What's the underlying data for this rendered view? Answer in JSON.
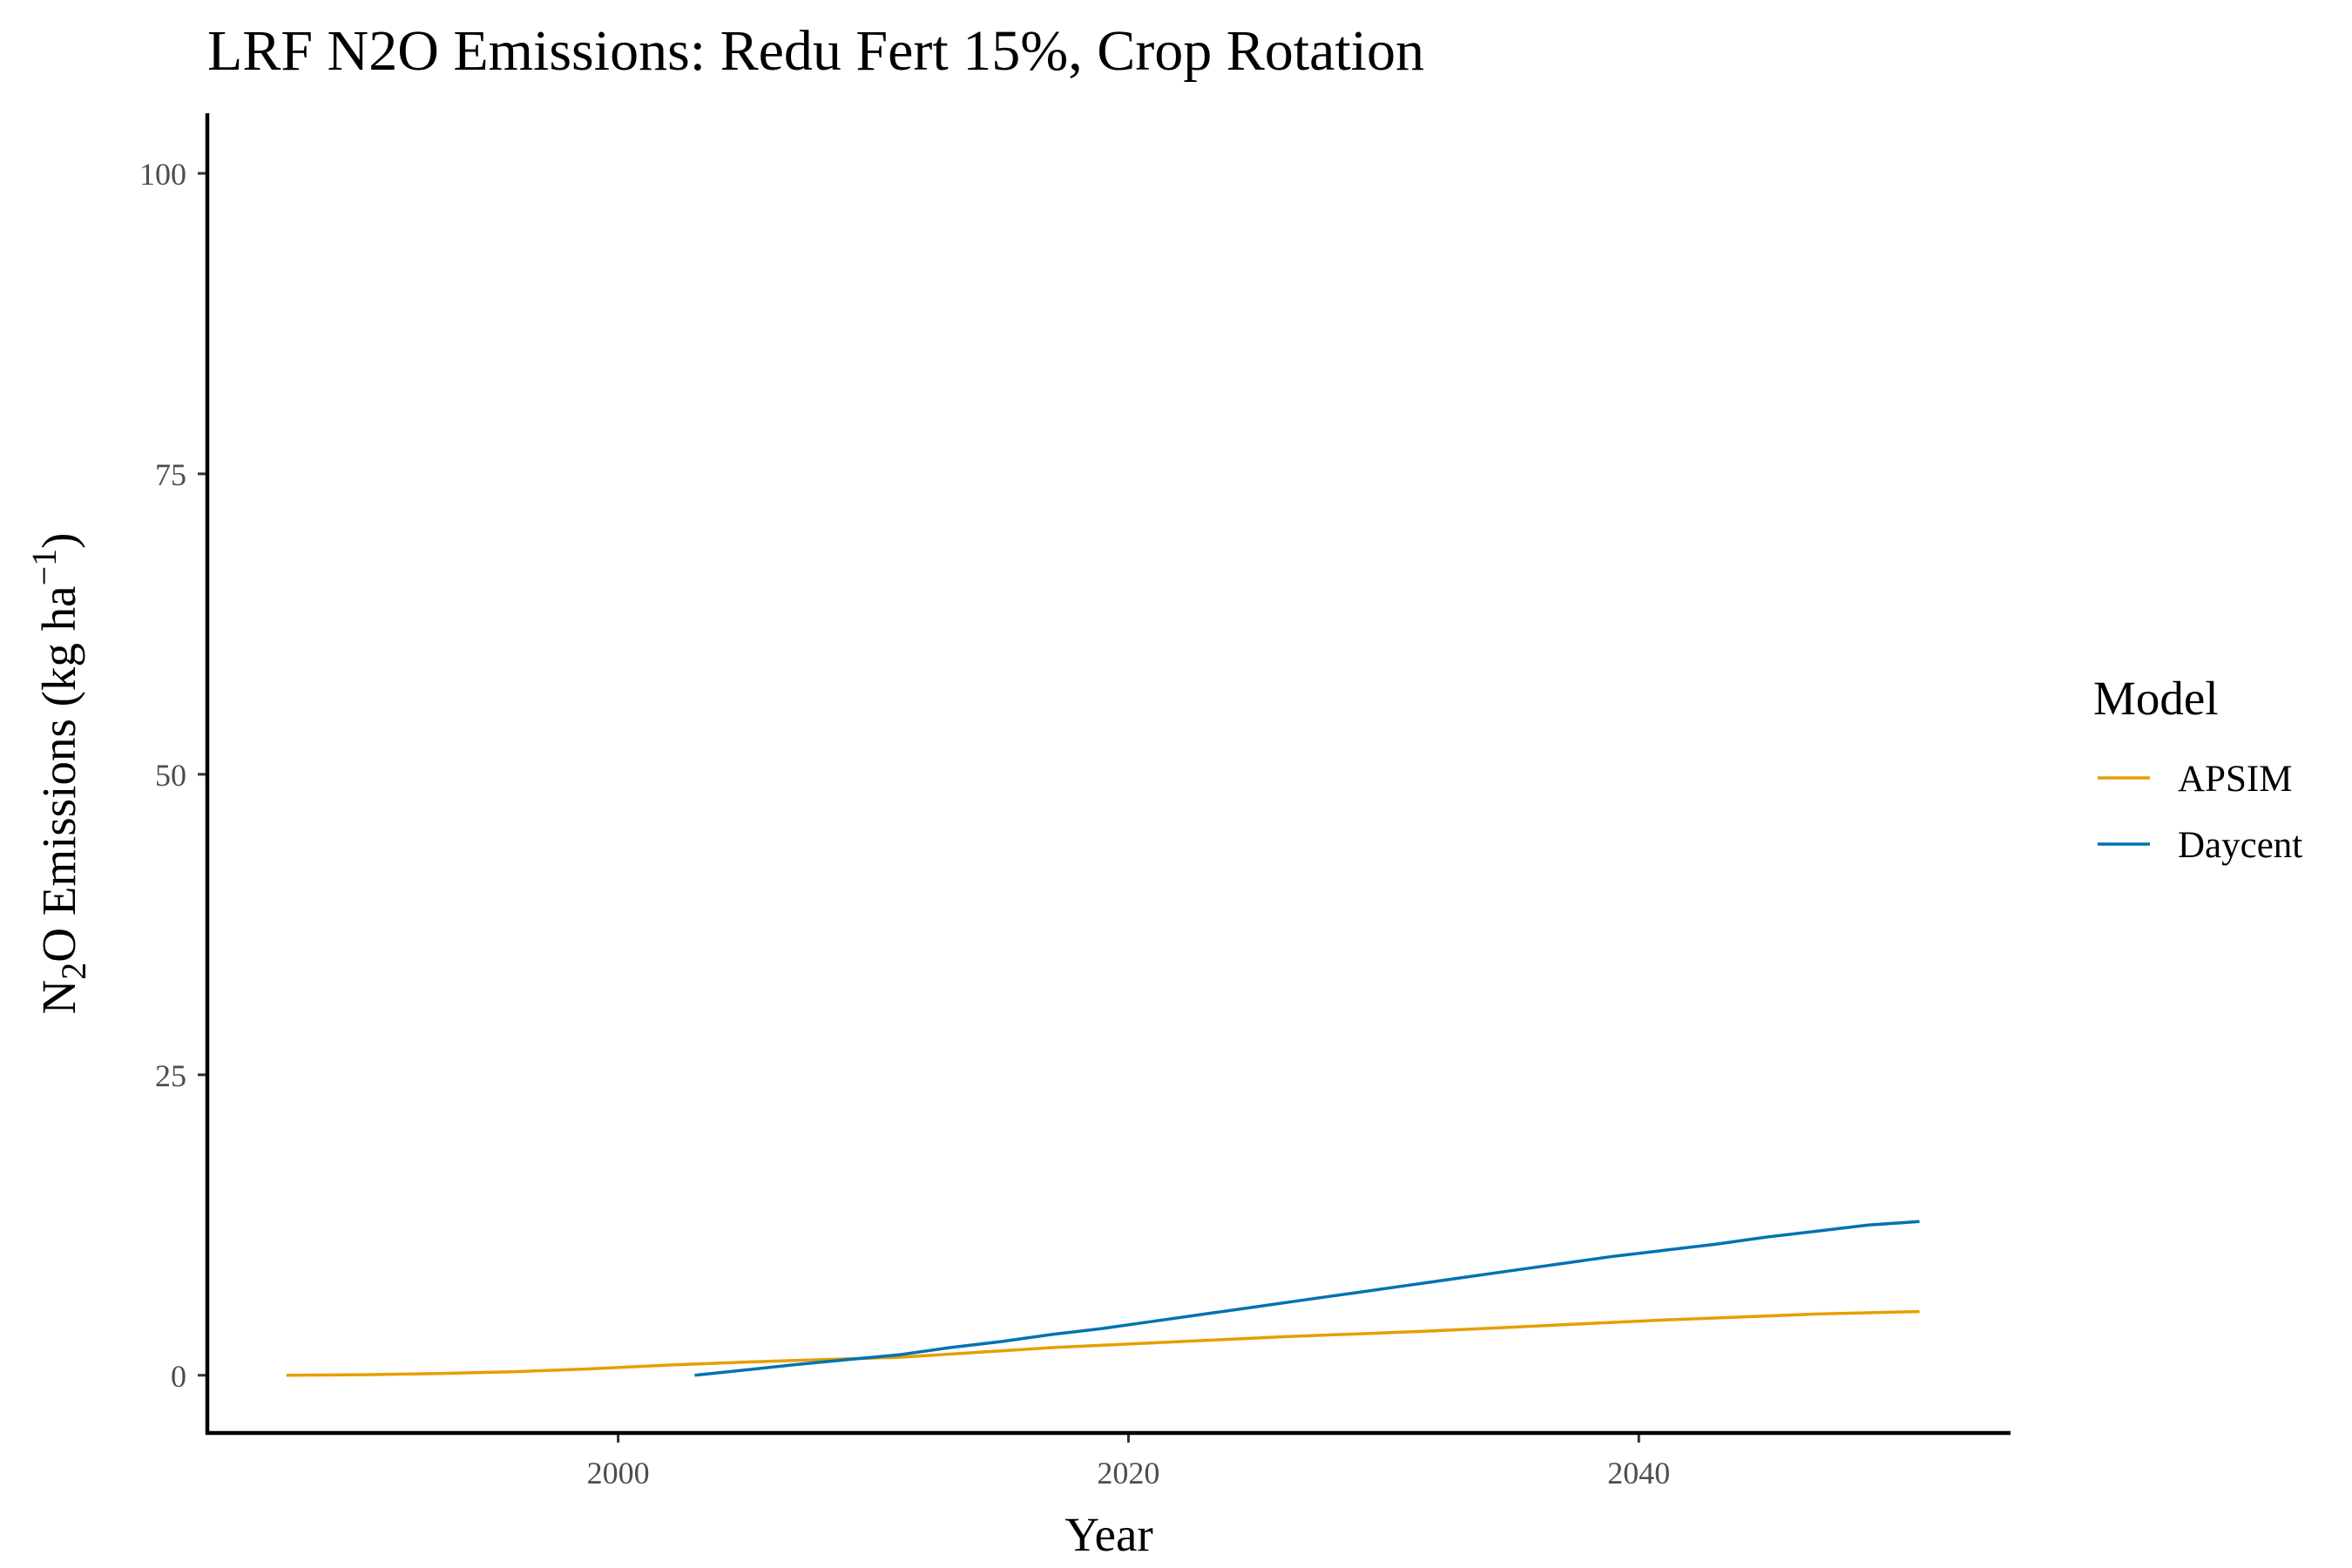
{
  "chart_data": {
    "type": "line",
    "title": "LRF N2O Emissions:  Redu Fert 15%, Crop Rotation",
    "xlabel": "Year",
    "ylabel": {
      "pre": "N",
      "sub": "2",
      "mid": "O Emissions (kg ha",
      "sup": "−1",
      "post": ")"
    },
    "xlim": [
      1983.9,
      2054.5
    ],
    "ylim": [
      -4.8,
      105
    ],
    "x_ticks": [
      2000,
      2020,
      2040
    ],
    "x_tick_labels": [
      "2000",
      "2020",
      "2040"
    ],
    "y_ticks": [
      0,
      25,
      50,
      75,
      100
    ],
    "y_tick_labels": [
      "0",
      "25",
      "50",
      "75",
      "100"
    ],
    "grid": false,
    "legend": {
      "title": "Model",
      "position": "right"
    },
    "series": [
      {
        "name": "APSIM",
        "color": "#E69F00",
        "x": [
          1987,
          1990,
          1993,
          1996,
          1999,
          2002,
          2005,
          2008,
          2011,
          2014,
          2017,
          2020,
          2023,
          2026,
          2029,
          2032,
          2035,
          2038,
          2041,
          2044,
          2047,
          2050,
          2051
        ],
        "y": [
          0.0,
          0.05,
          0.15,
          0.3,
          0.55,
          0.85,
          1.1,
          1.3,
          1.5,
          1.9,
          2.3,
          2.6,
          2.9,
          3.2,
          3.45,
          3.7,
          4.0,
          4.3,
          4.6,
          4.85,
          5.1,
          5.25,
          5.3
        ]
      },
      {
        "name": "Daycent",
        "color": "#0072B2",
        "x": [
          2003,
          2005,
          2007,
          2009,
          2011,
          2013,
          2015,
          2017,
          2019,
          2021,
          2023,
          2025,
          2027,
          2029,
          2031,
          2033,
          2035,
          2037,
          2039,
          2041,
          2043,
          2045,
          2047,
          2049,
          2051
        ],
        "y": [
          0.0,
          0.45,
          0.9,
          1.3,
          1.7,
          2.3,
          2.8,
          3.4,
          3.9,
          4.5,
          5.1,
          5.7,
          6.3,
          6.9,
          7.5,
          8.1,
          8.7,
          9.3,
          9.9,
          10.4,
          10.9,
          11.5,
          12.0,
          12.5,
          12.8
        ]
      }
    ]
  }
}
